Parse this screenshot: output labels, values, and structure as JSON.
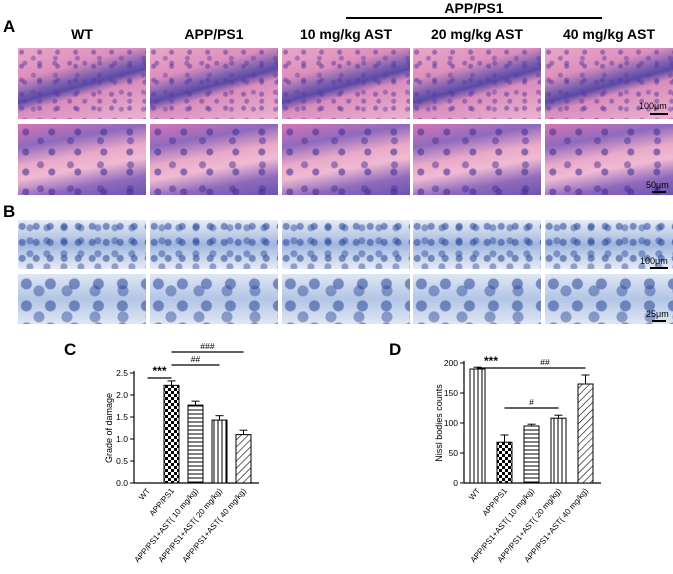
{
  "figure": {
    "panel_labels": {
      "a": "A",
      "b": "B",
      "c": "C",
      "d": "D"
    },
    "group_header": "APP/PS1",
    "columns": [
      "WT",
      "APP/PS1",
      "10 mg/kg AST",
      "20 mg/kg AST",
      "40 mg/kg AST"
    ],
    "scale_bars": {
      "a_top": "100μm",
      "a_bottom": "50μm",
      "b_top": "100μm",
      "b_bottom": "25μm"
    },
    "stain_colors": {
      "he_pink": "#e9a9c8",
      "he_purple": "#5b49a6",
      "nissl_blue": "#9fb5df"
    }
  },
  "chart_data": [
    {
      "type": "bar",
      "panel": "C",
      "ylabel": "Grade of damage",
      "ylim": [
        0,
        2.5
      ],
      "yticks": [
        "0.0",
        "0.5",
        "1.0",
        "1.5",
        "2.0",
        "2.5"
      ],
      "categories": [
        "WT",
        "APP/PS1",
        "APP/PS1+AST( 10 mg/kg)",
        "APP/PS1+AST( 20 mg/kg)",
        "APP/PS1+AST( 40 mg/kg)"
      ],
      "values": [
        0,
        2.22,
        1.77,
        1.43,
        1.1
      ],
      "errors": [
        0,
        0.1,
        0.09,
        0.1,
        0.1
      ],
      "patterns": [
        "solid",
        "checker",
        "hlines",
        "vlines",
        "diagonal"
      ],
      "significance": [
        "***",
        "##",
        "###"
      ]
    },
    {
      "type": "bar",
      "panel": "D",
      "ylabel": "Nissl bodies counts",
      "ylim": [
        0,
        200
      ],
      "yticks": [
        "0",
        "50",
        "100",
        "150",
        "200"
      ],
      "categories": [
        "WT",
        "APP/PS1",
        "APP/PS1+AST( 10 mg/kg)",
        "APP/PS1+AST( 20 mg/kg)",
        "APP/PS1+AST( 40 mg/kg)"
      ],
      "values": [
        190,
        68,
        95,
        108,
        165
      ],
      "errors": [
        3,
        12,
        3,
        5,
        15
      ],
      "patterns": [
        "vlines",
        "checker",
        "hlines",
        "vlines",
        "diagonal"
      ],
      "significance": [
        "***",
        "#",
        "##"
      ]
    }
  ]
}
